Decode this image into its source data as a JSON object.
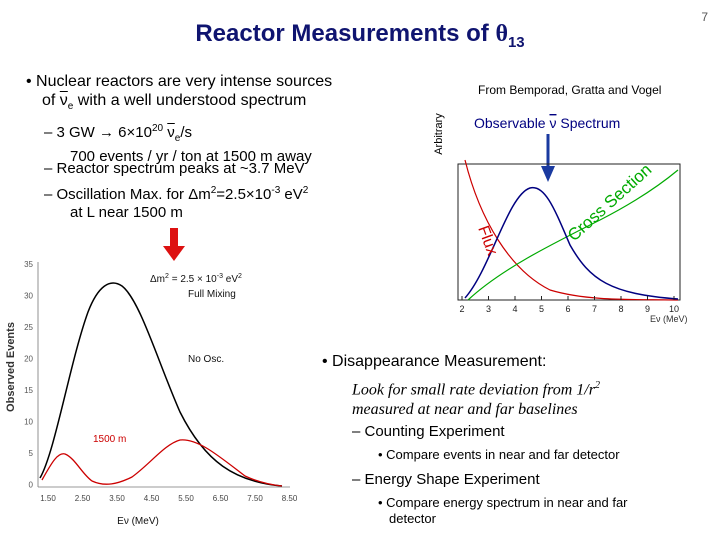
{
  "title": {
    "main": "Reactor Measurements of ",
    "theta": "θ",
    "sub": "13"
  },
  "page_number": "7",
  "left_bullets": {
    "b1_line1": "• Nuclear reactors are very intense sources",
    "b1_line2_pre": "of ",
    "b1_nu": "ν",
    "b1_e": "e",
    "b1_line2_post": " with a well understood spectrum",
    "s1_pre": "– 3 GW → 6×10",
    "s1_exp": "20",
    "s1_nu": "ν",
    "s1_e": "e",
    "s1_post": "/s",
    "s1_line2": "700 events / yr / ton at 1500 m away",
    "s2": "– Reactor spectrum peaks at ~3.7 MeV",
    "s3_pre": "– Oscillation Max. for Δm",
    "s3_sq": "2",
    "s3_mid": "=2.5×10",
    "s3_exp": "-3",
    "s3_post": " eV",
    "s3_sq2": "2",
    "s3_line2": "at L near 1500 m"
  },
  "right_plot": {
    "source": "From Bemporad, Gratta and Vogel",
    "observable_pre": "Observable ",
    "observable_nu": "ν",
    "observable_post": " Spectrum",
    "ylabel": "Arbitrary",
    "flux_label": "Flux",
    "cross_label": "Cross Section",
    "xlabel": "Eν (MeV)",
    "xticks": [
      "2",
      "3",
      "4",
      "5",
      "6",
      "7",
      "8",
      "9",
      "10"
    ],
    "colors": {
      "observable": "#000080",
      "flux": "#cc0000",
      "cross": "#00aa00",
      "arrow": "#1a3aa0"
    }
  },
  "left_plot": {
    "ylabel": "Observed Events",
    "xlabel": "Eν (MeV)",
    "yticks": [
      "35",
      "30",
      "25",
      "20",
      "15",
      "10",
      "5",
      "0"
    ],
    "xticks": [
      "1.50",
      "2.50",
      "3.50",
      "4.50",
      "5.50",
      "6.50",
      "7.50",
      "8.50"
    ],
    "annot1_pre": "Δm",
    "annot1_sq": "2",
    "annot1_post": " = 2.5 × 10",
    "annot1_exp": "-3",
    "annot1_unit": " eV",
    "annot1_sq2": "2",
    "annot2": "Full Mixing",
    "label_noosc": "No Osc.",
    "label_1500": "1500 m",
    "colors": {
      "noosc": "#000000",
      "osc": "#cc0000",
      "arrow": "#dd1111"
    }
  },
  "right_bullets": {
    "b1": "• Disappearance Measurement:",
    "ital_line1_pre": "Look for small rate deviation from 1/r",
    "ital_sq": "2",
    "ital_line2": "measured at near and far baselines",
    "s1": "– Counting Experiment",
    "s1_sub": "• Compare events in near and far detector",
    "s2": "– Energy Shape Experiment",
    "s2_sub_line1": "• Compare energy spectrum in near and far",
    "s2_sub_line2": "detector"
  }
}
